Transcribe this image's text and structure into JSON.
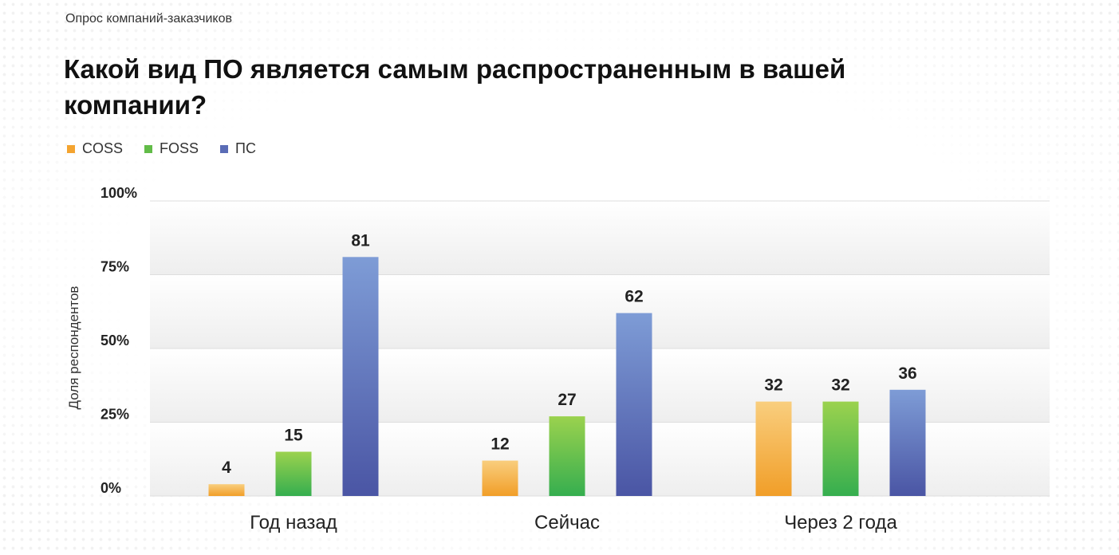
{
  "header": {
    "overline": "Опрос компаний-заказчиков",
    "title": "Какой вид ПО является самым распространенным в вашей компании?"
  },
  "legend": [
    {
      "label": "COSS",
      "color": "#F4A430"
    },
    {
      "label": "FOSS",
      "color": "#62BC48"
    },
    {
      "label": "ПС",
      "color": "#5A6CB6"
    }
  ],
  "chart_data": {
    "type": "bar",
    "categories": [
      "Год назад",
      "Сейчас",
      "Через 2 года"
    ],
    "series": [
      {
        "name": "COSS",
        "values": [
          4,
          12,
          32
        ],
        "color": "#F4A430"
      },
      {
        "name": "FOSS",
        "values": [
          15,
          27,
          32
        ],
        "color": "#62BC48"
      },
      {
        "name": "ПС",
        "values": [
          81,
          62,
          36
        ],
        "color": "#5A6CB6"
      }
    ],
    "ylabel": "Доля респондентов",
    "yticks": [
      "0%",
      "25%",
      "50%",
      "75%",
      "100%"
    ],
    "ylim": [
      0,
      100
    ],
    "grid": true,
    "legend_position": "top-left"
  }
}
